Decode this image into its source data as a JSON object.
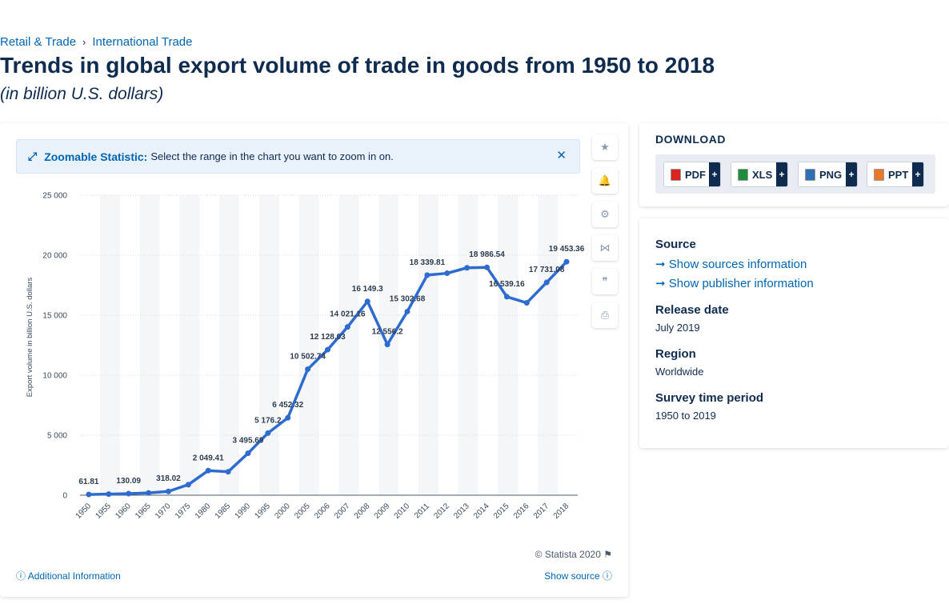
{
  "breadcrumb": {
    "item1": "Retail & Trade",
    "separator": "›",
    "item2": "International Trade"
  },
  "title": "Trends in global export volume of trade in goods from 1950 to 2018",
  "subtitle": "(in billion U.S. dollars)",
  "zoom_banner": {
    "label": "Zoomable Statistic:",
    "text": "Select the range in the chart you want to zoom in on.",
    "close": "✕",
    "icon": "⤢"
  },
  "toolbar": {
    "favorite": "★",
    "notify": "🔔",
    "settings": "⚙",
    "share": "⋈",
    "cite": "❞",
    "print": "⎙"
  },
  "footer": {
    "copyright": "© Statista 2020",
    "flag": "⚑",
    "additional_info": "Additional Information",
    "show_source": "Show source",
    "info_icon": "ⓘ"
  },
  "download": {
    "title": "DOWNLOAD",
    "buttons": [
      {
        "label": "PDF",
        "icon_color": "#d9251d"
      },
      {
        "label": "XLS",
        "icon_color": "#1e8e3e"
      },
      {
        "label": "PNG",
        "icon_color": "#2f6fb5"
      },
      {
        "label": "PPT",
        "icon_color": "#e8782a"
      }
    ],
    "plus": "+"
  },
  "info": {
    "source_head": "Source",
    "show_sources": "Show sources information",
    "show_publisher": "Show publisher information",
    "arrow": "➞",
    "release_head": "Release date",
    "release_val": "July 2019",
    "region_head": "Region",
    "region_val": "Worldwide",
    "survey_head": "Survey time period",
    "survey_val": "1950 to 2019"
  },
  "colors": {
    "line": "#2e6bcf",
    "accent": "#0066b3",
    "text": "#0f2c4f"
  },
  "chart_data": {
    "type": "line",
    "title": "",
    "xlabel": "",
    "ylabel": "Export volume in billion U.S. dollars",
    "ylim": [
      0,
      25000
    ],
    "yticks": [
      0,
      5000,
      10000,
      15000,
      20000,
      25000
    ],
    "ytick_labels": [
      "0",
      "5 000",
      "10 000",
      "15 000",
      "20 000",
      "25 000"
    ],
    "grid": true,
    "categories": [
      "1950",
      "1955",
      "1960",
      "1965",
      "1970",
      "1975",
      "1980",
      "1985",
      "1990",
      "1995",
      "2000",
      "2005",
      "2006",
      "2007",
      "2008",
      "2009",
      "2010",
      "2011",
      "2012",
      "2013",
      "2014",
      "2015",
      "2016",
      "2017",
      "2018"
    ],
    "series": [
      {
        "values": [
          61.81,
          93.5,
          130.09,
          188.0,
          318.02,
          877.0,
          2049.41,
          1954.0,
          3495.69,
          5176.2,
          6452.32,
          10502.74,
          12128.03,
          14021.16,
          16149.3,
          12556.2,
          15302.68,
          18339.81,
          18496.0,
          18950.0,
          18986.54,
          16539.16,
          16030.0,
          17731.08,
          19453.36
        ],
        "labels": [
          "61.81",
          "",
          "130.09",
          "",
          "318.02",
          "",
          "2 049.41",
          "",
          "3 495.69",
          "5 176.2",
          "6 452.32",
          "10 502.74",
          "12 128.03",
          "14 021.16",
          "16 149.3",
          "12 556.2",
          "15 302.68",
          "18 339.81",
          "",
          "",
          "18 986.54",
          "16 539.16",
          "",
          "17 731.08",
          "19 453.36"
        ]
      }
    ]
  }
}
